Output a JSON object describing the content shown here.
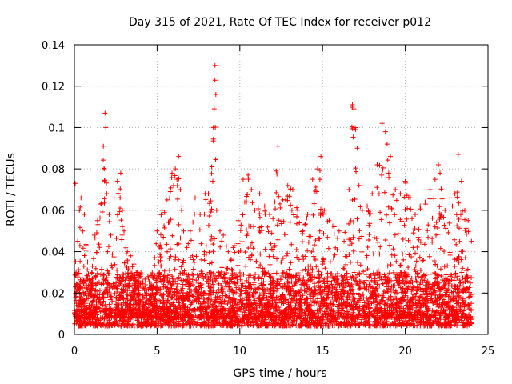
{
  "chart_data": {
    "type": "scatter",
    "title": "Day 315 of 2021, Rate Of TEC Index for receiver p012",
    "xlabel": "GPS time / hours",
    "ylabel": "ROTI / TECUs",
    "xlim": [
      0,
      25
    ],
    "ylim": [
      0,
      0.14
    ],
    "xticks": [
      "0",
      "5",
      "10",
      "15",
      "20",
      "25"
    ],
    "yticks": [
      "0",
      "0.02",
      "0.04",
      "0.06",
      "0.08",
      "0.1",
      "0.12",
      "0.14"
    ],
    "grid": true,
    "marker": "+",
    "color": "#ff0000",
    "series": [
      {
        "x": [
          0.05,
          0.1,
          0.15,
          0.2,
          0.3,
          0.4,
          0.5,
          0.6,
          0.8,
          1.0,
          1.2,
          1.4,
          1.6,
          1.75,
          1.8,
          1.85,
          1.9,
          1.95,
          2.0,
          2.1,
          2.2,
          2.4,
          2.6,
          2.8,
          2.9,
          3.0,
          3.2,
          3.4,
          3.6,
          3.8,
          4.0,
          4.3,
          4.6,
          5.0,
          5.3,
          5.6,
          5.9,
          6.0,
          6.1,
          6.2,
          6.3,
          6.4,
          6.5,
          6.6,
          6.8,
          7.0,
          7.3,
          7.6,
          7.9,
          8.1,
          8.3,
          8.4,
          8.45,
          8.5,
          8.55,
          8.6,
          8.8,
          9.0,
          9.3,
          9.6,
          9.9,
          10.2,
          10.5,
          10.7,
          10.9,
          11.2,
          11.5,
          11.8,
          12.0,
          12.2,
          12.3,
          12.6,
          12.9,
          13.2,
          13.5,
          13.8,
          14.1,
          14.4,
          14.7,
          14.9,
          15.1,
          15.4,
          15.7,
          16.0,
          16.3,
          16.6,
          16.8,
          16.9,
          17.0,
          17.1,
          17.2,
          17.4,
          17.7,
          18.0,
          18.3,
          18.6,
          18.8,
          18.9,
          19.0,
          19.1,
          19.4,
          19.7,
          20.0,
          20.3,
          20.6,
          20.9,
          21.2,
          21.5,
          21.8,
          22.0,
          22.1,
          22.4,
          22.7,
          23.0,
          23.2,
          23.4,
          23.6,
          23.8,
          24.0
        ],
        "y": [
          0.073,
          0.03,
          0.012,
          0.045,
          0.06,
          0.066,
          0.05,
          0.058,
          0.035,
          0.025,
          0.048,
          0.055,
          0.063,
          0.091,
          0.08,
          0.107,
          0.1,
          0.068,
          0.04,
          0.058,
          0.048,
          0.066,
          0.074,
          0.078,
          0.06,
          0.05,
          0.04,
          0.038,
          0.034,
          0.03,
          0.028,
          0.024,
          0.022,
          0.05,
          0.06,
          0.065,
          0.078,
          0.072,
          0.08,
          0.075,
          0.086,
          0.07,
          0.062,
          0.05,
          0.042,
          0.05,
          0.066,
          0.058,
          0.068,
          0.068,
          0.081,
          0.1,
          0.109,
          0.13,
          0.116,
          0.06,
          0.05,
          0.048,
          0.04,
          0.042,
          0.055,
          0.075,
          0.077,
          0.07,
          0.06,
          0.068,
          0.062,
          0.058,
          0.056,
          0.079,
          0.091,
          0.065,
          0.072,
          0.07,
          0.06,
          0.05,
          0.058,
          0.075,
          0.08,
          0.086,
          0.06,
          0.055,
          0.052,
          0.05,
          0.045,
          0.07,
          0.111,
          0.109,
          0.099,
          0.09,
          0.072,
          0.06,
          0.062,
          0.068,
          0.082,
          0.102,
          0.098,
          0.092,
          0.078,
          0.086,
          0.07,
          0.068,
          0.074,
          0.066,
          0.058,
          0.062,
          0.064,
          0.07,
          0.075,
          0.082,
          0.078,
          0.06,
          0.066,
          0.068,
          0.087,
          0.074,
          0.06,
          0.055,
          0.045
        ]
      }
    ],
    "baseline_band": [
      0.008,
      0.028
    ]
  }
}
